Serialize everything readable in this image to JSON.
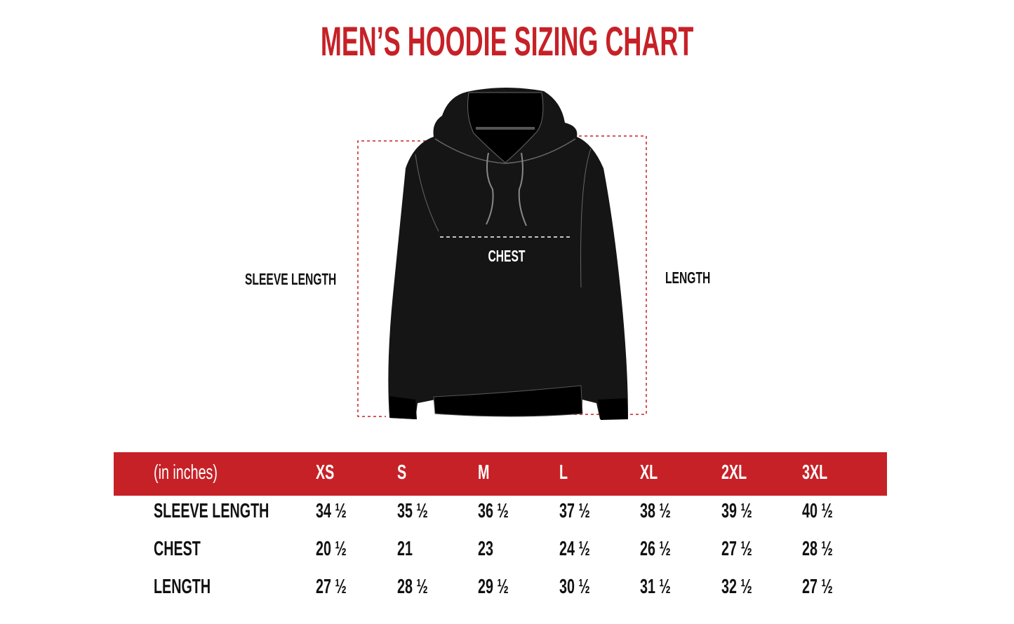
{
  "title": "MEN’S HOODIE SIZING CHART",
  "diagram": {
    "sleeve_label": "SLEEVE LENGTH",
    "chest_label": "CHEST",
    "length_label": "LENGTH",
    "accent_color": "#c62127"
  },
  "table": {
    "unit_label": "(in inches)",
    "sizes": [
      "XS",
      "S",
      "M",
      "L",
      "XL",
      "2XL",
      "3XL"
    ],
    "rows": [
      {
        "label": "SLEEVE LENGTH",
        "values": [
          "34 ½",
          "35 ½",
          "36 ½",
          "37 ½",
          "38 ½",
          "39 ½",
          "40 ½"
        ]
      },
      {
        "label": "CHEST",
        "values": [
          "20 ½",
          "21",
          "23",
          "24 ½",
          "26 ½",
          "27 ½",
          "28 ½"
        ]
      },
      {
        "label": "LENGTH",
        "values": [
          "27 ½",
          "28 ½",
          "29 ½",
          "30 ½",
          "31 ½",
          "32 ½",
          "27 ½"
        ]
      }
    ]
  }
}
